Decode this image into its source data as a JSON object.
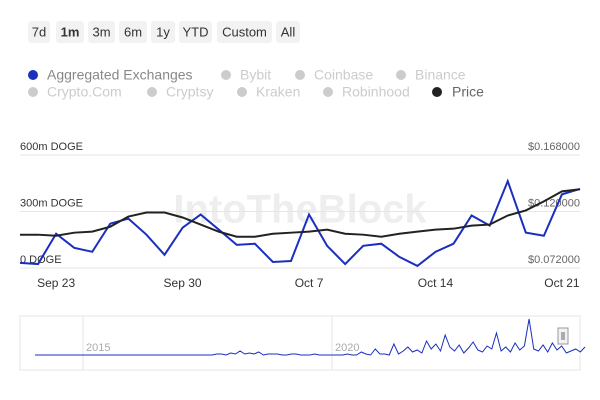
{
  "range_buttons": [
    "7d",
    "1m",
    "3m",
    "6m",
    "1y",
    "YTD",
    "Custom",
    "All"
  ],
  "selected_button": "1m",
  "watermark": "IntoTheBlock",
  "chart_data": {
    "type": "line",
    "categories": [
      null,
      null,
      "Sep 23",
      null,
      null,
      null,
      null,
      null,
      null,
      "Sep 30",
      null,
      null,
      null,
      null,
      null,
      null,
      "Oct 7",
      null,
      null,
      null,
      null,
      null,
      null,
      "Oct 14",
      null,
      null,
      null,
      null,
      null,
      null,
      "Oct 21",
      null
    ],
    "series": [
      {
        "name": "Aggregated Exchanges",
        "color": "#1a2fbf",
        "axis": "y",
        "values": [
          27000000,
          21000000,
          182000000,
          107000000,
          86000000,
          236000000,
          262000000,
          177000000,
          70000000,
          214000000,
          284000000,
          204000000,
          123000000,
          129000000,
          32000000,
          37000000,
          284000000,
          118000000,
          21000000,
          118000000,
          129000000,
          59000000,
          11000000,
          86000000,
          129000000,
          279000000,
          225000000,
          461000000,
          188000000,
          171000000,
          391000000,
          420000000
        ]
      },
      {
        "name": "Price",
        "color": "#222222",
        "axis": "y2",
        "values": [
          0.1003,
          0.1003,
          0.0994,
          0.102,
          0.1029,
          0.1071,
          0.1157,
          0.1191,
          0.1191,
          0.1149,
          0.1089,
          0.1029,
          0.0986,
          0.0986,
          0.1011,
          0.102,
          0.1029,
          0.1046,
          0.1011,
          0.1003,
          0.0986,
          0.1011,
          0.1029,
          0.1046,
          0.1054,
          0.108,
          0.1089,
          0.1166,
          0.1209,
          0.1286,
          0.1371,
          0.1389
        ]
      }
    ],
    "inactive_series": [
      "Bybit",
      "Coinbase",
      "Binance",
      "Crypto.Com",
      "Cryptsy",
      "Kraken",
      "Robinhood"
    ],
    "inactive_color": "#cccccc",
    "ylim": [
      0,
      600000000
    ],
    "yticks": [
      {
        "value": 0,
        "label": "0 DOGE"
      },
      {
        "value": 300000000,
        "label": "300m DOGE"
      },
      {
        "value": 600000000,
        "label": "600m DOGE"
      }
    ],
    "y2lim": [
      0.072,
      0.168
    ],
    "y2ticks": [
      {
        "value": 0.072,
        "label": "$0.072000"
      },
      {
        "value": 0.12,
        "label": "$0.120000"
      },
      {
        "value": 0.168,
        "label": "$0.168000"
      }
    ],
    "grid": true
  },
  "navigator": {
    "labels": [
      "2015",
      "2020"
    ],
    "values": [
      0,
      0,
      0,
      0,
      0,
      0,
      0,
      0,
      0,
      0,
      0,
      0,
      0,
      0,
      0,
      0,
      0,
      0,
      0,
      0,
      0,
      0,
      0,
      0,
      0,
      0,
      0,
      0,
      0,
      0,
      0,
      0,
      0,
      0,
      0,
      0,
      0,
      0,
      0,
      1,
      1,
      0,
      2,
      1,
      4,
      1,
      2,
      1,
      3,
      0,
      1,
      1,
      1,
      0,
      0,
      1,
      1,
      0,
      0,
      0,
      1,
      0,
      0,
      0,
      0,
      0,
      0,
      1,
      0,
      0,
      3,
      1,
      0,
      6,
      1,
      1,
      0,
      11,
      1,
      4,
      8,
      3,
      5,
      2,
      14,
      6,
      11,
      4,
      20,
      8,
      4,
      10,
      2,
      7,
      13,
      5,
      3,
      9,
      6,
      22,
      4,
      8,
      3,
      12,
      5,
      9,
      36,
      6,
      4,
      10,
      3,
      12,
      5,
      9,
      2,
      4,
      6,
      3,
      8
    ]
  }
}
